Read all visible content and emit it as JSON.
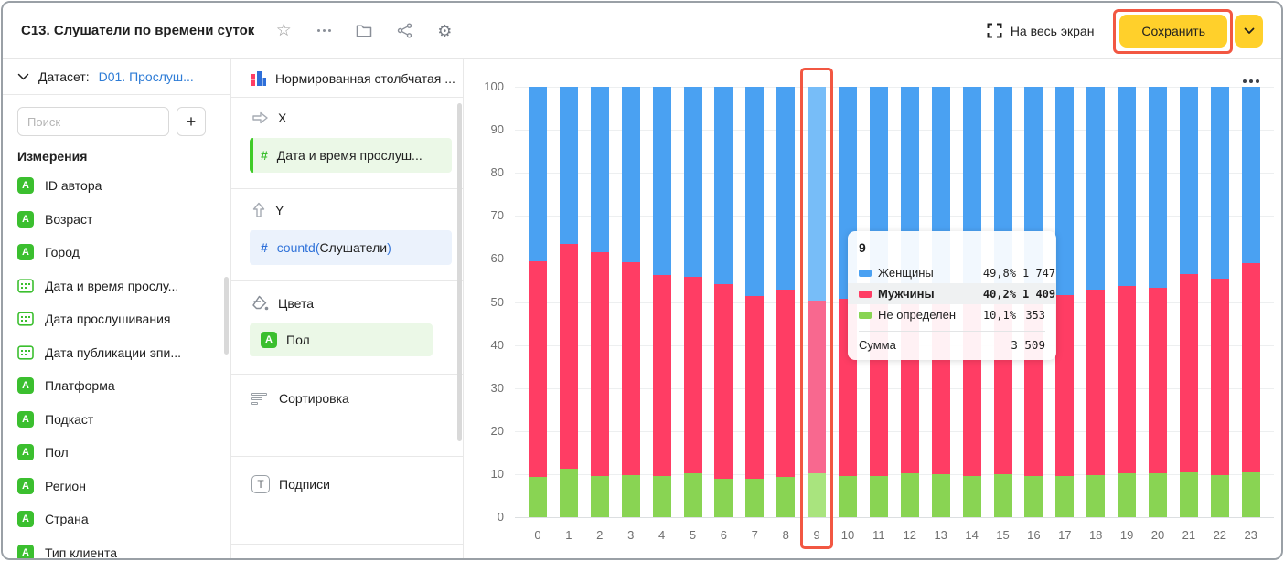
{
  "header": {
    "title": "C13. Слушатели по времени суток",
    "fullscreen_label": "На весь экран",
    "save_label": "Сохранить"
  },
  "sidebar": {
    "dataset_label": "Датасет:",
    "dataset_link": "D01. Прослуш...",
    "search_placeholder": "Поиск",
    "add_button_label": "+",
    "section_title": "Измерения",
    "string_icon_letter": "A",
    "fields": [
      {
        "label": "ID автора",
        "type": "string"
      },
      {
        "label": "Возраст",
        "type": "string"
      },
      {
        "label": "Город",
        "type": "string"
      },
      {
        "label": "Дата и время прослу...",
        "type": "date"
      },
      {
        "label": "Дата прослушивания",
        "type": "date"
      },
      {
        "label": "Дата публикации эпи...",
        "type": "date"
      },
      {
        "label": "Платформа",
        "type": "string"
      },
      {
        "label": "Подкаст",
        "type": "string"
      },
      {
        "label": "Пол",
        "type": "string"
      },
      {
        "label": "Регион",
        "type": "string"
      },
      {
        "label": "Страна",
        "type": "string"
      },
      {
        "label": "Тип клиента",
        "type": "string"
      }
    ]
  },
  "config": {
    "chart_type_label": "Нормированная столбчатая ...",
    "x_section": {
      "label": "X",
      "field": "Дата и время прослуш..."
    },
    "y_section": {
      "label": "Y",
      "field_prefix": "countd(",
      "field_name": "Слушатели",
      "field_suffix": ")"
    },
    "colors_section": {
      "label": "Цвета",
      "field": "Пол"
    },
    "sort_section": {
      "label": "Сортировка"
    },
    "labels_section": {
      "label": "Подписи"
    },
    "t_icon_letter": "T"
  },
  "tooltip": {
    "header": "9",
    "rows": [
      {
        "name": "Женщины",
        "percent": "49,8%",
        "value": "1 747",
        "color": "#4aa1f2",
        "bold": false
      },
      {
        "name": "Мужчины",
        "percent": "40,2%",
        "value": "1 409",
        "color": "#ff3d64",
        "bold": true
      },
      {
        "name": "Не определен",
        "percent": "10,1%",
        "value": "353",
        "color": "#89d453",
        "bold": false
      }
    ],
    "total_label": "Сумма",
    "total_value": "3 509"
  },
  "chart_data": {
    "type": "bar",
    "stacked": true,
    "normalized": true,
    "title": "",
    "xlabel": "",
    "ylabel": "",
    "ylim": [
      0,
      100
    ],
    "yticks": [
      0,
      10,
      20,
      30,
      40,
      50,
      60,
      70,
      80,
      90,
      100
    ],
    "grid": true,
    "legend_position": "none",
    "categories": [
      "0",
      "1",
      "2",
      "3",
      "4",
      "5",
      "6",
      "7",
      "8",
      "9",
      "10",
      "11",
      "12",
      "13",
      "14",
      "15",
      "16",
      "17",
      "18",
      "19",
      "20",
      "21",
      "22",
      "23"
    ],
    "series": [
      {
        "name": "Не определен",
        "color": "#89d453",
        "hover_color": "#a9e47e",
        "values": [
          9.3,
          11.2,
          9.5,
          9.8,
          9.6,
          10.1,
          9.0,
          9.0,
          9.3,
          10.1,
          9.6,
          9.6,
          10.2,
          9.9,
          9.6,
          9.9,
          9.6,
          9.6,
          9.7,
          10.2,
          10.1,
          10.3,
          9.8,
          10.5
        ]
      },
      {
        "name": "Мужчины",
        "color": "#ff3d64",
        "hover_color": "#f8688f",
        "values": [
          50.2,
          52.3,
          52.0,
          49.4,
          46.6,
          45.8,
          45.2,
          42.3,
          43.5,
          40.2,
          41.2,
          42.4,
          42.8,
          43.6,
          43.9,
          44.1,
          43.4,
          42.0,
          43.1,
          43.6,
          43.2,
          46.1,
          45.6,
          48.5
        ]
      },
      {
        "name": "Женщины",
        "color": "#4aa1f2",
        "hover_color": "#77bdf8",
        "values": [
          40.5,
          36.5,
          38.5,
          40.8,
          43.8,
          44.1,
          45.8,
          48.7,
          47.2,
          49.8,
          49.2,
          48.0,
          47.0,
          46.5,
          46.5,
          46.0,
          47.0,
          48.4,
          47.2,
          46.2,
          46.7,
          43.6,
          44.6,
          41.0
        ]
      }
    ],
    "highlighted_category": "9"
  },
  "annotations": {
    "color": "#f25742"
  }
}
